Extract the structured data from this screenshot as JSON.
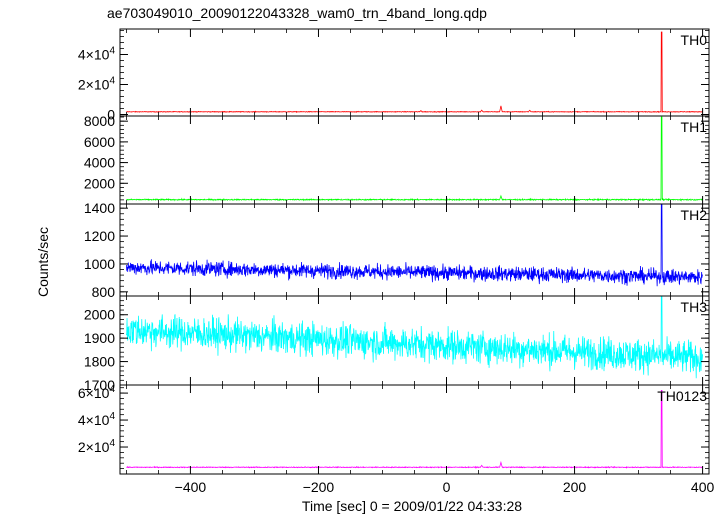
{
  "chart_data": {
    "type": "line",
    "title": "ae703049010_20090122043328_wam0_trn_4band_long.qdp",
    "xlabel": "Time [sec] 0 = 2009/01/22 04:33:28",
    "ylabel": "Counts/sec",
    "xlim": [
      -510,
      410
    ],
    "x_ticks": [
      -400,
      -200,
      0,
      200,
      400
    ],
    "x_tick_labels": [
      "−400",
      "−200",
      "0",
      "200",
      "400"
    ],
    "colors": {
      "TH0": "#ff0000",
      "TH1": "#00ff00",
      "TH2": "#0000ff",
      "TH3": "#00ffff",
      "TH0123": "#ff00ff"
    },
    "panels": [
      {
        "name": "TH0",
        "label": "TH0",
        "color": "#ff0000",
        "ylim": [
          -1000,
          57000
        ],
        "y_ticks": [
          0,
          20000,
          40000
        ],
        "y_tick_labels": [
          {
            "base": "0",
            "exp": ""
          },
          {
            "base": "2×10",
            "exp": "4"
          },
          {
            "base": "4×10",
            "exp": "4"
          }
        ],
        "baseline": 1800,
        "noise": 150,
        "bumps": [
          {
            "x": -40,
            "y": 2600
          },
          {
            "x": 55,
            "y": 2900
          },
          {
            "x": 85,
            "y": 5800
          },
          {
            "x": 130,
            "y": 2800
          }
        ],
        "spike": {
          "x": 336,
          "y": 55000
        }
      },
      {
        "name": "TH1",
        "label": "TH1",
        "color": "#00ff00",
        "ylim": [
          0,
          8500
        ],
        "y_ticks": [
          2000,
          4000,
          6000,
          8000
        ],
        "y_tick_labels": [
          {
            "base": "2000",
            "exp": ""
          },
          {
            "base": "4000",
            "exp": ""
          },
          {
            "base": "6000",
            "exp": ""
          },
          {
            "base": "8000",
            "exp": ""
          }
        ],
        "baseline": 420,
        "noise": 40,
        "bumps": [
          {
            "x": 85,
            "y": 780
          }
        ],
        "spike": {
          "x": 336,
          "y": 8400
        }
      },
      {
        "name": "TH2",
        "label": "TH2",
        "color": "#0000ff",
        "ylim": [
          770,
          1430
        ],
        "y_ticks": [
          800,
          1000,
          1200,
          1400
        ],
        "y_tick_labels": [
          {
            "base": "800",
            "exp": ""
          },
          {
            "base": "1000",
            "exp": ""
          },
          {
            "base": "1200",
            "exp": ""
          },
          {
            "base": "1400",
            "exp": ""
          }
        ],
        "trend": [
          {
            "x": -500,
            "y": 975
          },
          {
            "x": 400,
            "y": 905
          }
        ],
        "noise": 38,
        "spike": {
          "x": 336,
          "y": 1430
        }
      },
      {
        "name": "TH3",
        "label": "TH3",
        "color": "#00ffff",
        "ylim": [
          1700,
          2080
        ],
        "y_ticks": [
          1700,
          1800,
          1900,
          2000
        ],
        "y_tick_labels": [
          {
            "base": "1700",
            "exp": ""
          },
          {
            "base": "1800",
            "exp": ""
          },
          {
            "base": "1900",
            "exp": ""
          },
          {
            "base": "2000",
            "exp": ""
          }
        ],
        "trend": [
          {
            "x": -500,
            "y": 1935
          },
          {
            "x": 400,
            "y": 1815
          }
        ],
        "noise": 50,
        "spike": {
          "x": 336,
          "y": 2080
        }
      },
      {
        "name": "TH0123",
        "label": "TH0123",
        "color": "#ff00ff",
        "ylim": [
          0,
          66000
        ],
        "y_ticks": [
          20000,
          40000,
          60000
        ],
        "y_tick_labels": [
          {
            "base": "2×10",
            "exp": "4"
          },
          {
            "base": "4×10",
            "exp": "4"
          },
          {
            "base": "6×10",
            "exp": "4"
          }
        ],
        "baseline": 5000,
        "noise": 220,
        "bumps": [
          {
            "x": 85,
            "y": 8600
          },
          {
            "x": 55,
            "y": 6400
          }
        ],
        "spike": {
          "x": 336,
          "y": 62000
        }
      }
    ]
  }
}
